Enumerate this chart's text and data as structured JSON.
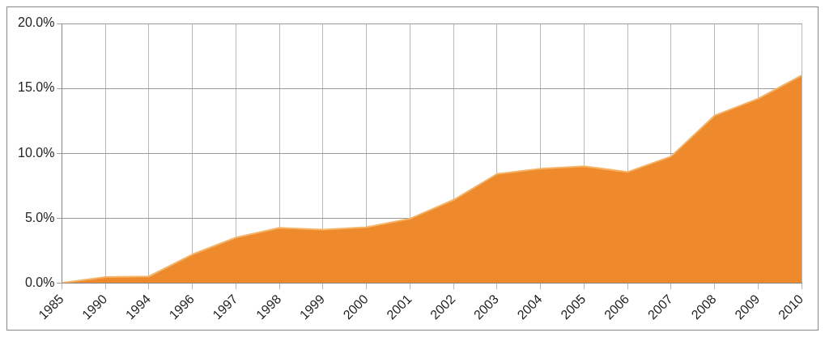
{
  "chart_data": {
    "type": "area",
    "categories": [
      "1985",
      "1990",
      "1994",
      "1996",
      "1997",
      "1998",
      "1999",
      "2000",
      "2001",
      "2002",
      "2003",
      "2004",
      "2005",
      "2006",
      "2007",
      "2008",
      "2009",
      "2010"
    ],
    "values": [
      0,
      0.45,
      0.5,
      2.2,
      3.5,
      4.25,
      4.1,
      4.3,
      4.95,
      6.4,
      8.4,
      8.8,
      9.0,
      8.55,
      9.75,
      12.9,
      14.2,
      16.0
    ],
    "color": "#ee8a2c",
    "ylim": [
      0,
      20
    ],
    "yticks": [
      {
        "value": 0,
        "label": "0.0%"
      },
      {
        "value": 5,
        "label": "5.0%"
      },
      {
        "value": 10,
        "label": "10.0%"
      },
      {
        "value": 15,
        "label": "15.0%"
      },
      {
        "value": 20,
        "label": "20.0%"
      }
    ],
    "grid": true,
    "legend": false
  }
}
